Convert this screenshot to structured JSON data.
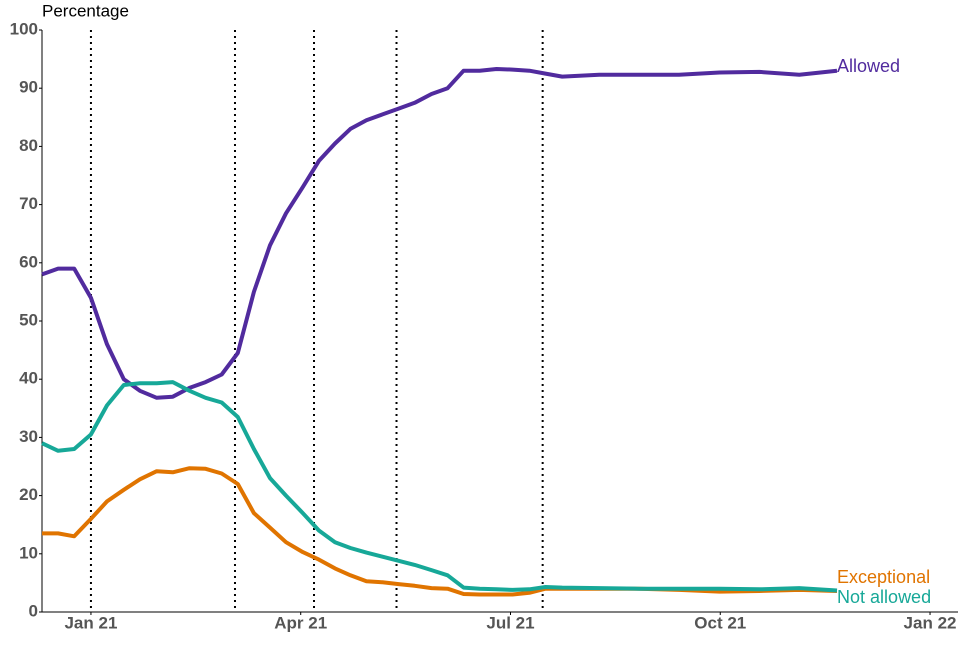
{
  "chart_data": {
    "type": "line",
    "y_label": "Percentage",
    "x": [
      -0.7,
      -0.47,
      -0.24,
      0,
      0.23,
      0.47,
      0.7,
      0.94,
      1.17,
      1.41,
      1.64,
      1.87,
      2.1,
      2.33,
      2.56,
      2.79,
      3.03,
      3.26,
      3.49,
      3.71,
      3.94,
      4.17,
      4.4,
      4.63,
      4.87,
      5.1,
      5.33,
      5.56,
      5.8,
      6.03,
      6.27,
      6.5,
      6.74,
      7.27,
      7.84,
      8.41,
      8.99,
      9.56,
      10.13,
      10.67
    ],
    "series": [
      {
        "name": "Allowed",
        "color": "#512b9e",
        "values": [
          58,
          59,
          59,
          54,
          46,
          40,
          38,
          36.8,
          37,
          38.5,
          39.5,
          40.8,
          44.5,
          55,
          63,
          68.5,
          73,
          77.5,
          80.5,
          83,
          84.5,
          85.5,
          86.5,
          87.5,
          89,
          90,
          93,
          93,
          93.3,
          93.2,
          93,
          92.5,
          92,
          92.3,
          92.3,
          92.3,
          92.7,
          92.8,
          92.3,
          93
        ]
      },
      {
        "name": "Exceptional",
        "color": "#e07400",
        "values": [
          13.5,
          13.5,
          13,
          16,
          19,
          21,
          22.8,
          24.2,
          24,
          24.7,
          24.6,
          23.8,
          22,
          17,
          14.5,
          12,
          10.3,
          9,
          7.5,
          6.3,
          5.3,
          5.1,
          4.8,
          4.5,
          4.1,
          4,
          3.1,
          3,
          3,
          3,
          3.3,
          4,
          4,
          4,
          4,
          3.8,
          3.5,
          3.6,
          3.8,
          3.6
        ]
      },
      {
        "name": "Not allowed",
        "color": "#17a898",
        "values": [
          29,
          27.7,
          28,
          30.5,
          35.5,
          39,
          39.3,
          39.3,
          39.5,
          38,
          36.8,
          36,
          33.5,
          28,
          23,
          20,
          17,
          14,
          12,
          11,
          10.2,
          9.5,
          8.8,
          8.1,
          7.2,
          6.3,
          4.2,
          4,
          3.9,
          3.8,
          3.9,
          4.3,
          4.2,
          4.1,
          4,
          4,
          4,
          3.9,
          4.1,
          3.7
        ]
      }
    ],
    "xlim": [
      -0.7,
      12.4
    ],
    "xticks": [
      {
        "value": 0,
        "label": "Jan 21"
      },
      {
        "value": 3,
        "label": "Apr 21"
      },
      {
        "value": 6,
        "label": "Jul 21"
      },
      {
        "value": 9,
        "label": "Oct 21"
      },
      {
        "value": 12,
        "label": "Jan 22"
      }
    ],
    "ylim": [
      0,
      100
    ],
    "yticks": [
      0,
      10,
      20,
      30,
      40,
      50,
      60,
      70,
      80,
      90,
      100
    ],
    "vlines": [
      0,
      2.06,
      3.19,
      4.37,
      6.46
    ]
  }
}
